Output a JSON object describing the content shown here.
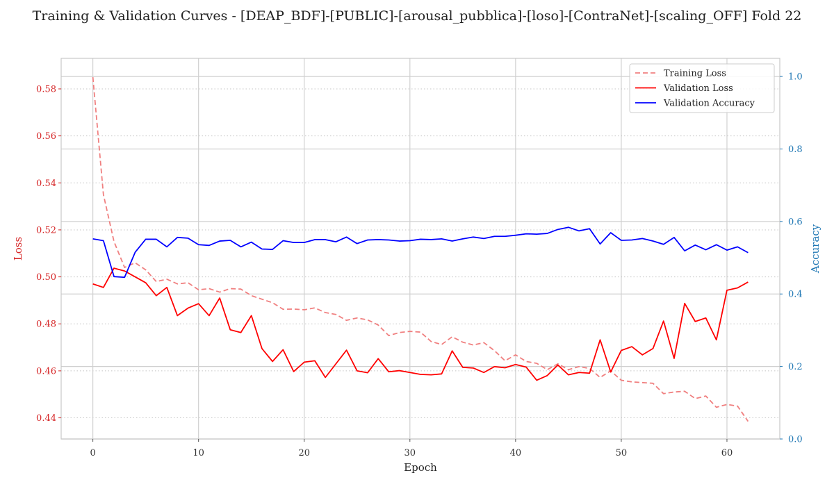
{
  "chart_data": {
    "type": "line",
    "title": "Training & Validation Curves - [DEAP_BDF]-[PUBLIC]-[arousal_pubblica]-[loso]-[ContraNet]-[scaling_OFF] Fold 22",
    "xlabel": "Epoch",
    "ylabel_left": "Loss",
    "ylabel_right": "Accuracy",
    "xlim": [
      -3,
      65
    ],
    "ylim_left": [
      0.431,
      0.593
    ],
    "ylim_right": [
      0.0,
      1.05
    ],
    "x_ticks": [
      0,
      10,
      20,
      30,
      40,
      50,
      60
    ],
    "y_left_ticks": [
      0.44,
      0.46,
      0.48,
      0.5,
      0.52,
      0.54,
      0.56,
      0.58
    ],
    "y_right_ticks": [
      0.0,
      0.2,
      0.4,
      0.6,
      0.8,
      1.0
    ],
    "grid": true,
    "legend_position": "top-right",
    "colors": {
      "training_loss": "#f08080",
      "validation_loss": "#ff0000",
      "validation_accuracy": "#0000ff",
      "left_axis": "#d62728",
      "right_axis": "#1f77b4"
    },
    "x": [
      0,
      1,
      2,
      3,
      4,
      5,
      6,
      7,
      8,
      9,
      10,
      11,
      12,
      13,
      14,
      15,
      16,
      17,
      18,
      19,
      20,
      21,
      22,
      23,
      24,
      25,
      26,
      27,
      28,
      29,
      30,
      31,
      32,
      33,
      34,
      35,
      36,
      37,
      38,
      39,
      40,
      41,
      42,
      43,
      44,
      45,
      46,
      47,
      48,
      49,
      50,
      51,
      52,
      53,
      54,
      55,
      56,
      57,
      58,
      59,
      60,
      61,
      62
    ],
    "series": [
      {
        "name": "Training Loss",
        "axis": "left",
        "style": "dashed",
        "color": "#f08080",
        "values": [
          0.585,
          0.535,
          0.515,
          0.504,
          0.506,
          0.503,
          0.498,
          0.499,
          0.497,
          0.4975,
          0.4945,
          0.495,
          0.4935,
          0.495,
          0.4948,
          0.492,
          0.4905,
          0.489,
          0.4862,
          0.4863,
          0.486,
          0.4868,
          0.4848,
          0.484,
          0.4815,
          0.4825,
          0.4817,
          0.4795,
          0.475,
          0.4763,
          0.4768,
          0.4765,
          0.4725,
          0.4712,
          0.4745,
          0.4722,
          0.471,
          0.472,
          0.4686,
          0.4643,
          0.4668,
          0.464,
          0.4632,
          0.4605,
          0.463,
          0.4605,
          0.4618,
          0.461,
          0.4572,
          0.46,
          0.456,
          0.4553,
          0.455,
          0.4547,
          0.4503,
          0.451,
          0.4513,
          0.4482,
          0.4493,
          0.4445,
          0.4457,
          0.445,
          0.4385
        ]
      },
      {
        "name": "Validation Loss",
        "axis": "left",
        "style": "solid",
        "color": "#ff0000",
        "values": [
          0.497,
          0.4955,
          0.5037,
          0.5025,
          0.5,
          0.4975,
          0.492,
          0.4955,
          0.4835,
          0.4867,
          0.4886,
          0.4835,
          0.491,
          0.4775,
          0.4763,
          0.4835,
          0.4695,
          0.464,
          0.469,
          0.4597,
          0.4637,
          0.4643,
          0.4572,
          0.463,
          0.4688,
          0.46,
          0.4592,
          0.4652,
          0.4596,
          0.4601,
          0.4593,
          0.4585,
          0.4583,
          0.4587,
          0.4685,
          0.4615,
          0.4612,
          0.4593,
          0.4618,
          0.4613,
          0.4627,
          0.4616,
          0.456,
          0.458,
          0.4625,
          0.4583,
          0.4593,
          0.459,
          0.4732,
          0.4595,
          0.4687,
          0.4703,
          0.4668,
          0.4695,
          0.4812,
          0.4653,
          0.4887,
          0.481,
          0.4825,
          0.4732,
          0.4943,
          0.4953,
          0.4978
        ]
      },
      {
        "name": "Validation Accuracy",
        "axis": "right",
        "style": "solid",
        "color": "#0000ff",
        "values": [
          0.552,
          0.547,
          0.448,
          0.446,
          0.515,
          0.551,
          0.551,
          0.53,
          0.556,
          0.554,
          0.536,
          0.534,
          0.546,
          0.548,
          0.53,
          0.543,
          0.524,
          0.523,
          0.547,
          0.542,
          0.542,
          0.55,
          0.55,
          0.544,
          0.557,
          0.539,
          0.549,
          0.55,
          0.549,
          0.546,
          0.547,
          0.551,
          0.55,
          0.552,
          0.546,
          0.552,
          0.557,
          0.553,
          0.559,
          0.559,
          0.562,
          0.566,
          0.565,
          0.567,
          0.578,
          0.584,
          0.574,
          0.58,
          0.538,
          0.569,
          0.548,
          0.549,
          0.553,
          0.546,
          0.537,
          0.556,
          0.519,
          0.535,
          0.522,
          0.536,
          0.521,
          0.53,
          0.514
        ]
      }
    ]
  }
}
